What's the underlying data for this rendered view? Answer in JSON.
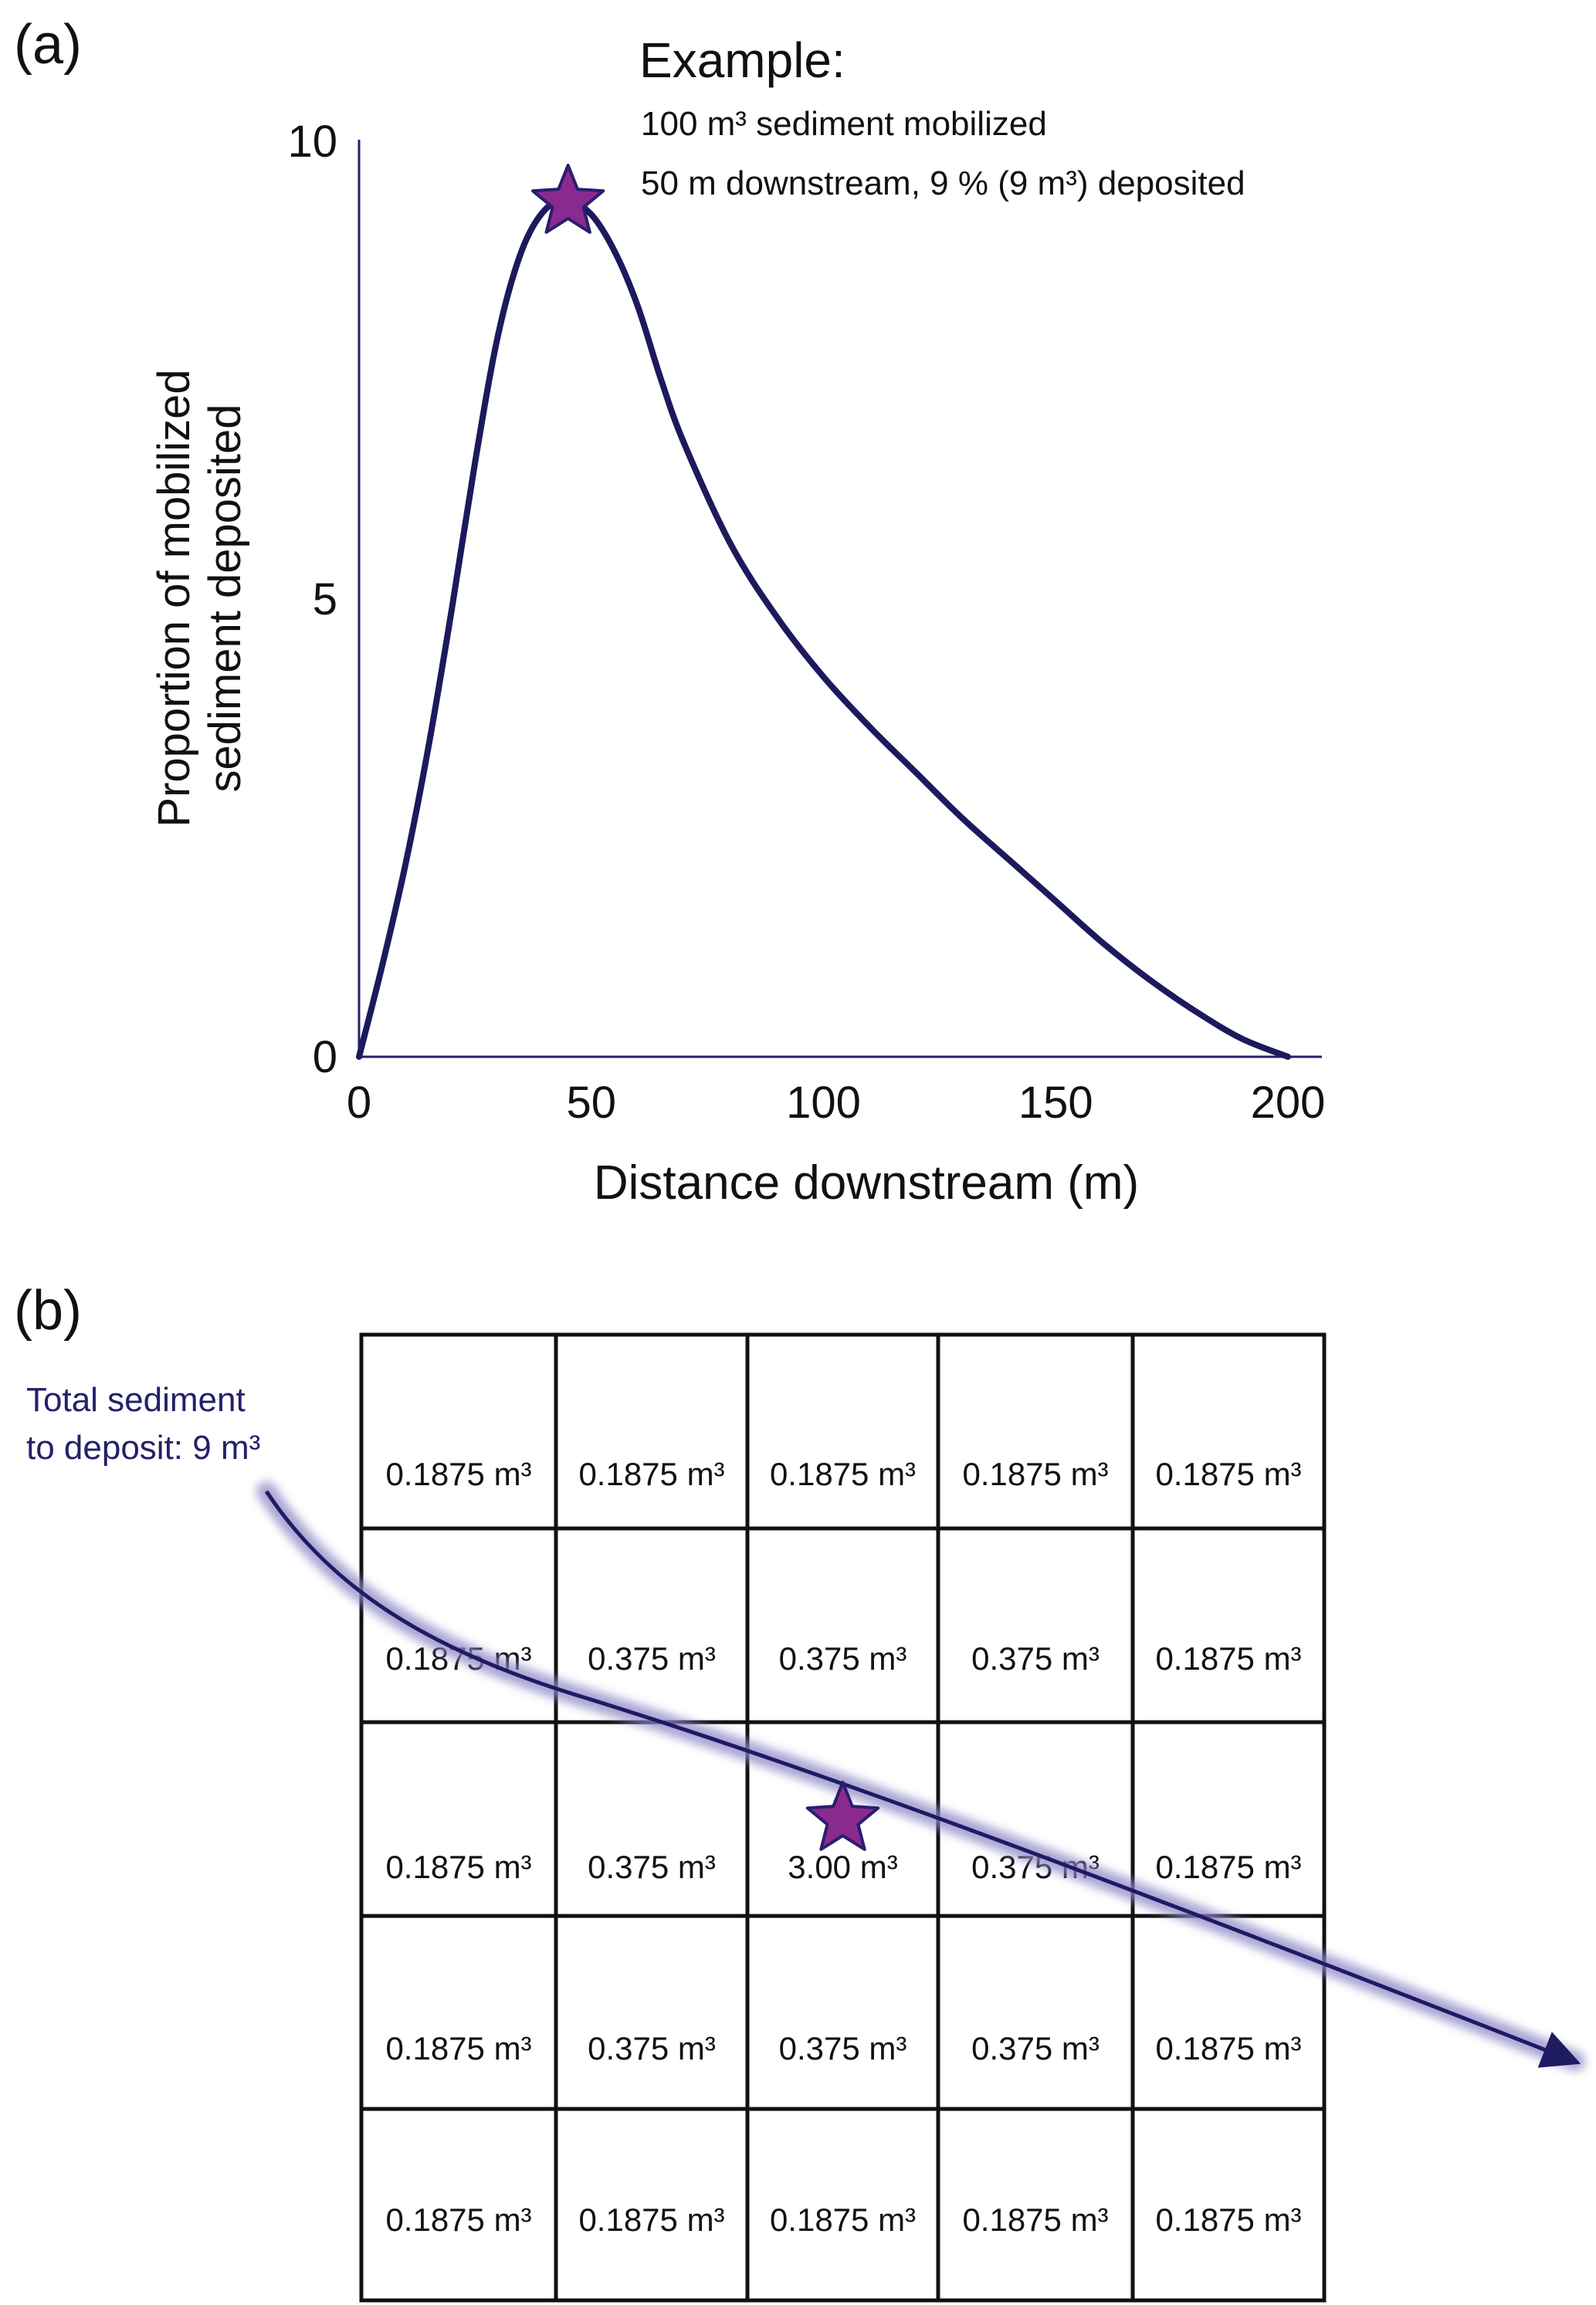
{
  "panel_a": {
    "label": "(a)",
    "example": {
      "heading": "Example:",
      "line1": "100 m³ sediment mobilized",
      "line2": "50 m downstream, 9 % (9 m³) deposited"
    }
  },
  "panel_b": {
    "label": "(b)",
    "arrow_label_line1": "Total sediment",
    "arrow_label_line2": "to deposit: 9 m³",
    "grid": [
      [
        "0.1875 m³",
        "0.1875 m³",
        "0.1875 m³",
        "0.1875 m³",
        "0.1875 m³"
      ],
      [
        "0.1875 m³",
        "0.375 m³",
        "0.375 m³",
        "0.375 m³",
        "0.1875 m³"
      ],
      [
        "0.1875 m³",
        "0.375 m³",
        "3.00 m³",
        "0.375 m³",
        "0.1875 m³"
      ],
      [
        "0.1875 m³",
        "0.375 m³",
        "0.375 m³",
        "0.375 m³",
        "0.1875 m³"
      ],
      [
        "0.1875 m³",
        "0.1875 m³",
        "0.1875 m³",
        "0.1875 m³",
        "0.1875 m³"
      ]
    ],
    "star_cell": [
      2,
      2
    ]
  },
  "colors": {
    "curve": "#1c1a5c",
    "axis": "#25206a",
    "star_fill": "#8a2a8e",
    "star_stroke": "#2a1e6e",
    "arrow": "#1e1b63",
    "arrow_glow": "#8e86c6",
    "arrow_label": "#24206a"
  },
  "chart_data": {
    "type": "line",
    "xlabel": "Distance downstream (m)",
    "ylabel_line1": "Proportion of mobilized",
    "ylabel_line2": "sediment deposited",
    "xlim": [
      0,
      200
    ],
    "ylim": [
      0,
      10
    ],
    "xticks": [
      0,
      50,
      100,
      150,
      200
    ],
    "yticks": [
      0,
      5,
      10
    ],
    "grid": false,
    "x": [
      0,
      5,
      10,
      15,
      20,
      25,
      30,
      35,
      40,
      45,
      50,
      55,
      60,
      65,
      70,
      80,
      90,
      100,
      110,
      120,
      130,
      140,
      150,
      160,
      170,
      180,
      190,
      200
    ],
    "y": [
      0,
      1.0,
      2.1,
      3.4,
      4.9,
      6.5,
      7.9,
      8.8,
      9.25,
      9.35,
      9.2,
      8.8,
      8.2,
      7.4,
      6.7,
      5.6,
      4.8,
      4.15,
      3.6,
      3.1,
      2.6,
      2.15,
      1.7,
      1.25,
      0.85,
      0.5,
      0.2,
      0
    ],
    "marker": {
      "x": 45,
      "y": 9.35,
      "shape": "star"
    }
  }
}
